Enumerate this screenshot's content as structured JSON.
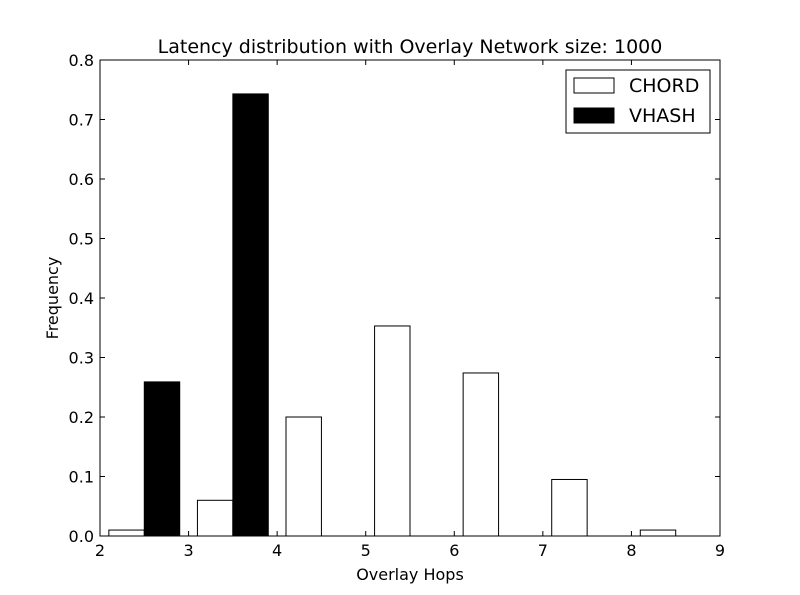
{
  "chart_data": {
    "type": "bar",
    "title": "Latency distribution with Overlay Network size: 1000",
    "xlabel": "Overlay Hops",
    "ylabel": "Frequency",
    "xlim": [
      2,
      9
    ],
    "ylim": [
      0,
      0.8
    ],
    "xticks": [
      "2",
      "3",
      "4",
      "5",
      "6",
      "7",
      "8",
      "9"
    ],
    "yticks": [
      "0.0",
      "0.1",
      "0.2",
      "0.3",
      "0.4",
      "0.5",
      "0.6",
      "0.7",
      "0.8"
    ],
    "legend_position": "top-right",
    "series": [
      {
        "name": "CHORD",
        "color": "#ffffff",
        "bars": [
          {
            "x": 2.1,
            "value": 0.01
          },
          {
            "x": 3.1,
            "value": 0.06
          },
          {
            "x": 4.1,
            "value": 0.2
          },
          {
            "x": 5.1,
            "value": 0.353
          },
          {
            "x": 6.1,
            "value": 0.274
          },
          {
            "x": 7.1,
            "value": 0.095
          },
          {
            "x": 8.1,
            "value": 0.01
          }
        ]
      },
      {
        "name": "VHASH",
        "color": "#000000",
        "bars": [
          {
            "x": 2.5,
            "value": 0.259
          },
          {
            "x": 3.5,
            "value": 0.743
          }
        ]
      }
    ],
    "bar_width": 0.4
  }
}
